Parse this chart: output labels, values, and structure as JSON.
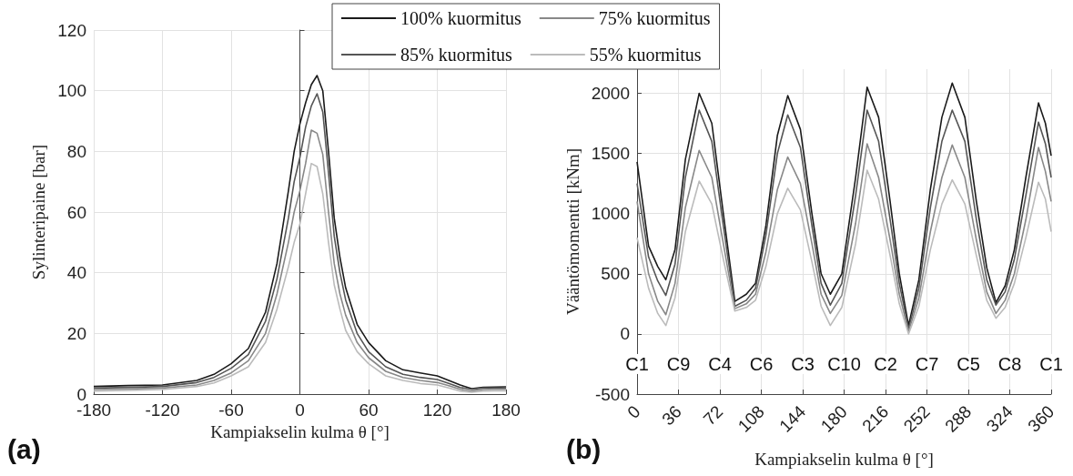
{
  "chart_data": [
    {
      "type": "line",
      "xlabel": "Kampiakselin kulma θ [°]",
      "ylabel": "Sylinteripaine [bar]",
      "xlim": [
        -180,
        180
      ],
      "xticks": [
        -180,
        -120,
        -60,
        0,
        60,
        120,
        180
      ],
      "ylim": [
        0,
        120
      ],
      "yticks": [
        0,
        20,
        40,
        60,
        80,
        100,
        120
      ],
      "grid": true,
      "line_style": "solid",
      "annotations": [
        "(a)"
      ],
      "x": [
        -180,
        -150,
        -120,
        -90,
        -75,
        -60,
        -45,
        -30,
        -20,
        -10,
        -5,
        0,
        5,
        10,
        15,
        20,
        25,
        30,
        35,
        40,
        50,
        60,
        75,
        90,
        105,
        120,
        130,
        140,
        150,
        160,
        170,
        180
      ],
      "series": [
        {
          "color": "#1a1a1a",
          "values": [
            2.5,
            2.8,
            3,
            4.5,
            6.5,
            10,
            15,
            27,
            43,
            67,
            80,
            89,
            96,
            102,
            105,
            100,
            80,
            58,
            45,
            35,
            23,
            17,
            11,
            8,
            7,
            6,
            4.5,
            3,
            1.8,
            2.2,
            2.3,
            2.4
          ]
        },
        {
          "color": "#555555",
          "values": [
            2,
            2.2,
            2.5,
            3.8,
            5.5,
            8.5,
            13,
            24,
            38,
            58,
            70,
            78,
            88,
            95,
            99,
            93,
            73,
            52,
            40,
            31,
            20,
            14,
            9,
            6.5,
            5.5,
            4.8,
            3.5,
            2.2,
            1.6,
            2,
            2,
            2
          ]
        },
        {
          "color": "#888888",
          "values": [
            1.5,
            1.7,
            2,
            3,
            4.5,
            7,
            11,
            20,
            33,
            50,
            60,
            67,
            76,
            87,
            86,
            79,
            60,
            43,
            33,
            26,
            17,
            12,
            7.5,
            5.5,
            4.5,
            3.8,
            2.8,
            1.6,
            1,
            1.5,
            1.6,
            1.6
          ]
        },
        {
          "color": "#bbbbbb",
          "values": [
            1,
            1.2,
            1.5,
            2.5,
            3.7,
            6,
            9,
            17,
            28,
            42,
            50,
            56,
            66,
            76,
            75,
            66,
            50,
            36,
            28,
            21,
            14,
            10,
            6,
            4.5,
            3.5,
            3,
            2,
            1,
            0.6,
            1,
            1.1,
            1.1
          ]
        }
      ]
    },
    {
      "type": "line",
      "xlabel": "Kampiakselin kulma θ [°]",
      "ylabel": "Vääntömomentti [kNm]",
      "xlim": [
        0,
        360
      ],
      "xticks": [
        0,
        36,
        72,
        108,
        144,
        180,
        216,
        252,
        288,
        324,
        360
      ],
      "ylim": [
        -500,
        2200
      ],
      "yticks": [
        -500,
        0,
        500,
        1000,
        1500,
        2000
      ],
      "grid": true,
      "legend": "top left",
      "line_style": "solid",
      "annotations": [
        "(b)",
        {
          "text": "C1",
          "x": 0,
          "y": -250
        },
        {
          "text": "C9",
          "x": 36,
          "y": -250
        },
        {
          "text": "C4",
          "x": 72,
          "y": -250
        },
        {
          "text": "C6",
          "x": 108,
          "y": -250
        },
        {
          "text": "C3",
          "x": 144,
          "y": -250
        },
        {
          "text": "C10",
          "x": 180,
          "y": -250
        },
        {
          "text": "C2",
          "x": 216,
          "y": -250
        },
        {
          "text": "C7",
          "x": 252,
          "y": -250
        },
        {
          "text": "C5",
          "x": 288,
          "y": -250
        },
        {
          "text": "C8",
          "x": 324,
          "y": -250
        },
        {
          "text": "C1",
          "x": 360,
          "y": -250
        }
      ],
      "x": [
        0,
        10,
        18,
        25,
        33,
        42,
        54,
        65,
        75,
        85,
        95,
        103,
        112,
        122,
        131,
        142,
        152,
        160,
        168,
        178,
        190,
        200,
        210,
        220,
        228,
        236,
        245,
        255,
        265,
        274,
        285,
        295,
        304,
        312,
        320,
        328,
        338,
        349,
        355,
        360
      ],
      "series": [
        {
          "name": "100% kuormitus",
          "color": "#1a1a1a",
          "values": [
            1430,
            730,
            560,
            450,
            700,
            1450,
            2000,
            1750,
            1000,
            270,
            330,
            420,
            900,
            1650,
            1980,
            1700,
            1000,
            500,
            330,
            500,
            1300,
            2050,
            1800,
            1100,
            500,
            70,
            450,
            1200,
            1800,
            2085,
            1800,
            1100,
            550,
            260,
            400,
            700,
            1300,
            1920,
            1750,
            1480
          ]
        },
        {
          "name": "85% kuormitus",
          "color": "#555555",
          "values": [
            1250,
            640,
            440,
            320,
            580,
            1300,
            1860,
            1600,
            900,
            230,
            280,
            380,
            820,
            1500,
            1820,
            1550,
            900,
            420,
            240,
            420,
            1150,
            1860,
            1600,
            950,
            420,
            40,
            380,
            1050,
            1600,
            1860,
            1600,
            950,
            450,
            240,
            350,
            620,
            1150,
            1760,
            1580,
            1300
          ]
        },
        {
          "name": "75% kuormitus",
          "color": "#888888",
          "values": [
            1100,
            500,
            270,
            160,
            420,
            1050,
            1525,
            1300,
            750,
            210,
            250,
            330,
            680,
            1200,
            1470,
            1250,
            750,
            330,
            170,
            320,
            920,
            1580,
            1300,
            780,
            330,
            20,
            300,
            850,
            1300,
            1570,
            1300,
            780,
            350,
            170,
            280,
            500,
            950,
            1550,
            1350,
            1100
          ]
        },
        {
          "name": "55% kuormitus",
          "color": "#bbbbbb",
          "values": [
            800,
            380,
            170,
            70,
            300,
            850,
            1270,
            1080,
            620,
            190,
            220,
            280,
            560,
            1000,
            1210,
            1030,
            600,
            230,
            70,
            220,
            750,
            1360,
            1120,
            650,
            250,
            0,
            230,
            700,
            1080,
            1280,
            1080,
            650,
            280,
            130,
            220,
            420,
            800,
            1260,
            1120,
            850
          ]
        }
      ]
    }
  ]
}
